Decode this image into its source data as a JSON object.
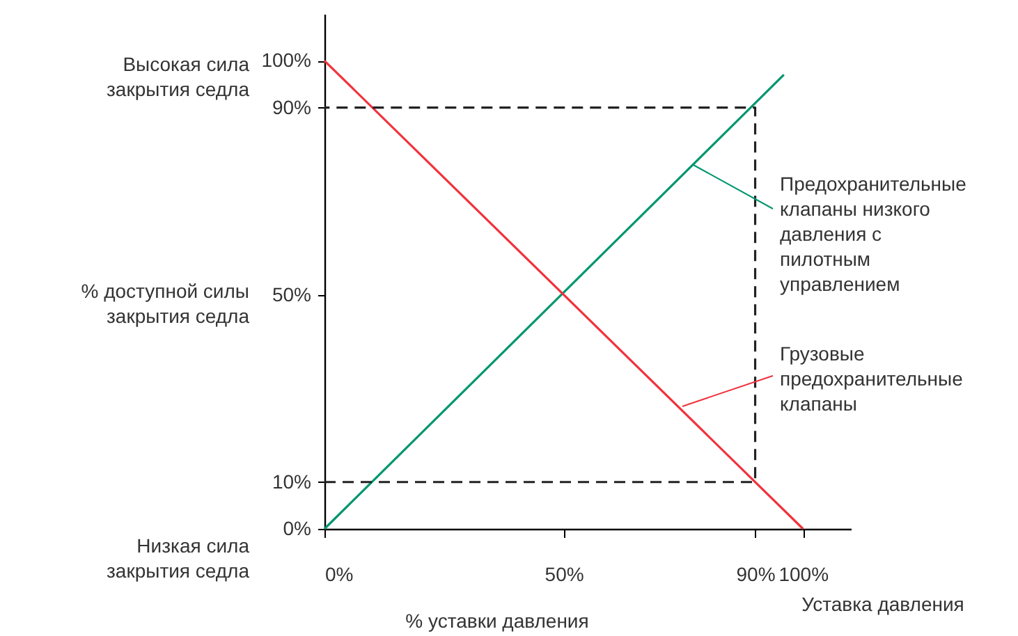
{
  "chart_data": {
    "type": "line",
    "xlabel": "% уставки давления",
    "ylabel": "% доступной силы\nзакрытия седла",
    "annotations": [
      "Высокая сила\nзакрытия седла",
      "Низкая сила\nзакрытия седла",
      "Уставка давления"
    ],
    "xlim": [
      0,
      110
    ],
    "ylim": [
      0,
      110
    ],
    "xticks": [
      {
        "value": 0,
        "label": "0%"
      },
      {
        "value": 50,
        "label": "50%"
      },
      {
        "value": 90,
        "label": "90%"
      },
      {
        "value": 100,
        "label": "100%"
      }
    ],
    "yticks": [
      {
        "value": 0,
        "label": "0%"
      },
      {
        "value": 10,
        "label": "10%"
      },
      {
        "value": 50,
        "label": "50%"
      },
      {
        "value": 90,
        "label": "90%"
      },
      {
        "value": 100,
        "label": "100%"
      }
    ],
    "grid": false,
    "legend": "right",
    "series": [
      {
        "name": "Предохранительные\nклапаны низкого\nдавления с\nпилотным\nуправлением",
        "color": "#00966e",
        "x": [
          0,
          96
        ],
        "values": [
          0,
          97
        ],
        "line_style": "solid"
      },
      {
        "name": "Грузовые\nпредохранительные\nклапаны",
        "color": "#f0323c",
        "x": [
          0,
          100
        ],
        "values": [
          100,
          0
        ],
        "line_style": "solid"
      },
      {
        "color": "#222222",
        "x": [
          0,
          90,
          90,
          0
        ],
        "values": [
          10,
          10,
          90,
          90
        ],
        "line_style": "dashed"
      }
    ]
  }
}
